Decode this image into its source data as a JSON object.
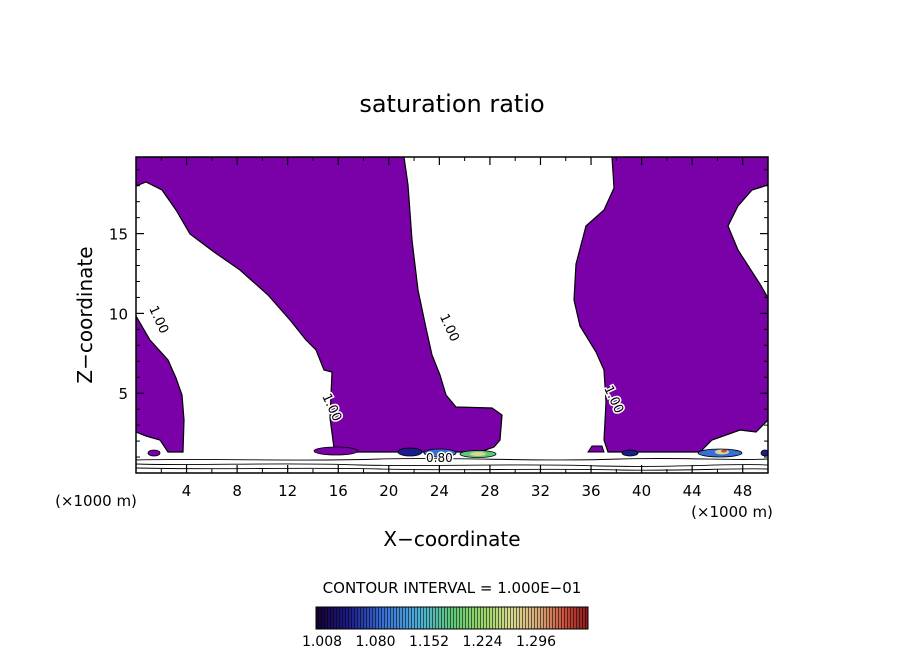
{
  "chart_data": {
    "type": "contour",
    "title": "saturation ratio",
    "xlabel": "X−coordinate",
    "ylabel": "Z−coordinate",
    "x_unit": "(×1000 m)",
    "y_unit": "(×1000 m)",
    "xlim": [
      0,
      50
    ],
    "ylim": [
      0,
      19.8
    ],
    "x_ticks": [
      4,
      8,
      12,
      16,
      20,
      24,
      28,
      32,
      36,
      40,
      44,
      48
    ],
    "y_ticks": [
      5,
      10,
      15
    ],
    "contour_labels": [
      {
        "text": "1.00",
        "x": 1.5,
        "z": 9.5
      },
      {
        "text": "1.00",
        "x": 15.2,
        "z": 4.0
      },
      {
        "text": "1.00",
        "x": 24.5,
        "z": 9.0
      },
      {
        "text": "1.00",
        "x": 37.5,
        "z": 4.5
      },
      {
        "text": "0.80",
        "x": 24.0,
        "z": 0.7
      }
    ],
    "contour_interval": "CONTOUR INTERVAL = 1.000E−01",
    "colorbar": {
      "ticks": [
        "1.008",
        "1.080",
        "1.152",
        "1.224",
        "1.296"
      ]
    },
    "colors": {
      "supersaturated_fill": "#7a00a8",
      "contour_line": "#000000"
    }
  }
}
